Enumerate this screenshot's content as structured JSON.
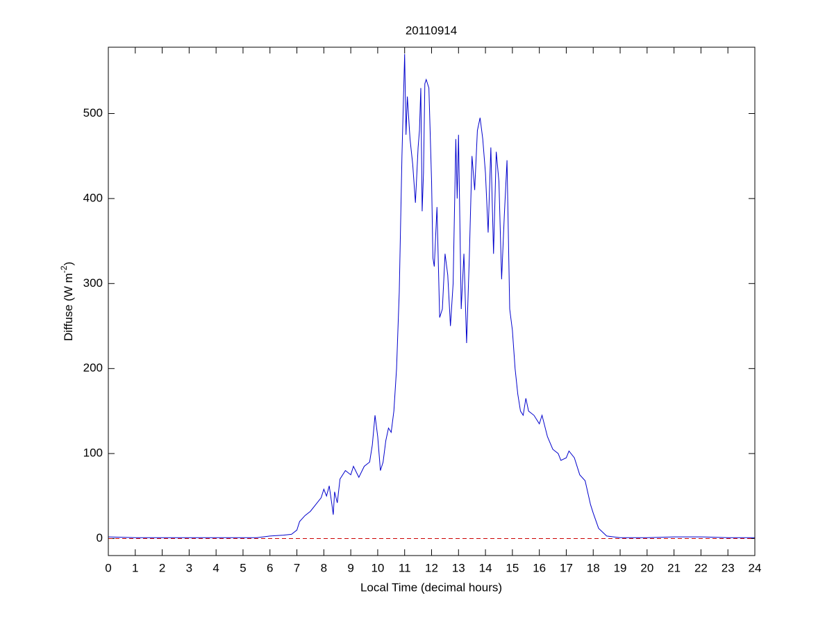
{
  "chart_data": {
    "type": "line",
    "title": "20110914",
    "xlabel": "Local Time (decimal hours)",
    "ylabel_parts": [
      "Diffuse (W m",
      "-2",
      ")"
    ],
    "x": [
      0,
      1,
      2,
      3,
      4,
      5,
      5.5,
      6,
      6.5,
      6.8,
      7,
      7.1,
      7.3,
      7.5,
      7.7,
      7.9,
      8,
      8.1,
      8.2,
      8.3,
      8.35,
      8.4,
      8.5,
      8.6,
      8.8,
      9,
      9.1,
      9.3,
      9.5,
      9.7,
      9.8,
      9.9,
      10,
      10.1,
      10.2,
      10.3,
      10.4,
      10.5,
      10.6,
      10.7,
      10.8,
      10.9,
      11,
      11.05,
      11.1,
      11.2,
      11.3,
      11.4,
      11.5,
      11.55,
      11.6,
      11.65,
      11.7,
      11.75,
      11.8,
      11.9,
      12,
      12.05,
      12.1,
      12.2,
      12.3,
      12.4,
      12.5,
      12.6,
      12.7,
      12.8,
      12.9,
      12.95,
      13,
      13.1,
      13.2,
      13.3,
      13.4,
      13.5,
      13.6,
      13.7,
      13.8,
      13.9,
      14,
      14.1,
      14.2,
      14.3,
      14.4,
      14.5,
      14.6,
      14.7,
      14.8,
      14.9,
      15,
      15.1,
      15.2,
      15.3,
      15.4,
      15.5,
      15.6,
      15.8,
      16,
      16.1,
      16.3,
      16.5,
      16.7,
      16.8,
      17,
      17.1,
      17.3,
      17.5,
      17.7,
      17.9,
      18,
      18.2,
      18.5,
      19,
      20,
      21,
      22,
      23,
      24
    ],
    "series": [
      {
        "name": "Diffuse",
        "color": "#0000cc",
        "values": [
          2,
          1,
          1,
          1,
          1,
          1,
          1,
          3,
          4,
          5,
          10,
          20,
          27,
          32,
          40,
          48,
          58,
          50,
          62,
          40,
          28,
          55,
          42,
          70,
          80,
          75,
          85,
          72,
          85,
          90,
          110,
          145,
          120,
          80,
          90,
          115,
          130,
          125,
          150,
          200,
          290,
          450,
          570,
          475,
          520,
          470,
          440,
          395,
          460,
          480,
          530,
          385,
          430,
          535,
          540,
          530,
          420,
          330,
          320,
          390,
          260,
          270,
          335,
          310,
          250,
          300,
          470,
          400,
          475,
          270,
          335,
          230,
          330,
          450,
          410,
          480,
          495,
          470,
          430,
          360,
          460,
          335,
          455,
          420,
          305,
          380,
          445,
          270,
          245,
          200,
          170,
          150,
          145,
          165,
          150,
          145,
          135,
          145,
          120,
          105,
          100,
          92,
          95,
          103,
          95,
          75,
          68,
          40,
          30,
          12,
          3,
          1,
          1,
          2,
          2,
          1,
          1
        ]
      }
    ],
    "hline": {
      "y": 0,
      "color": "#cc0000",
      "dashed": true
    },
    "xlim": [
      0,
      24
    ],
    "xticks": [
      0,
      1,
      2,
      3,
      4,
      5,
      6,
      7,
      8,
      9,
      10,
      11,
      12,
      13,
      14,
      15,
      16,
      17,
      18,
      19,
      20,
      21,
      22,
      23,
      24
    ],
    "ylim": [
      -20,
      578
    ],
    "yticks": [
      0,
      100,
      200,
      300,
      400,
      500
    ],
    "grid": false
  }
}
